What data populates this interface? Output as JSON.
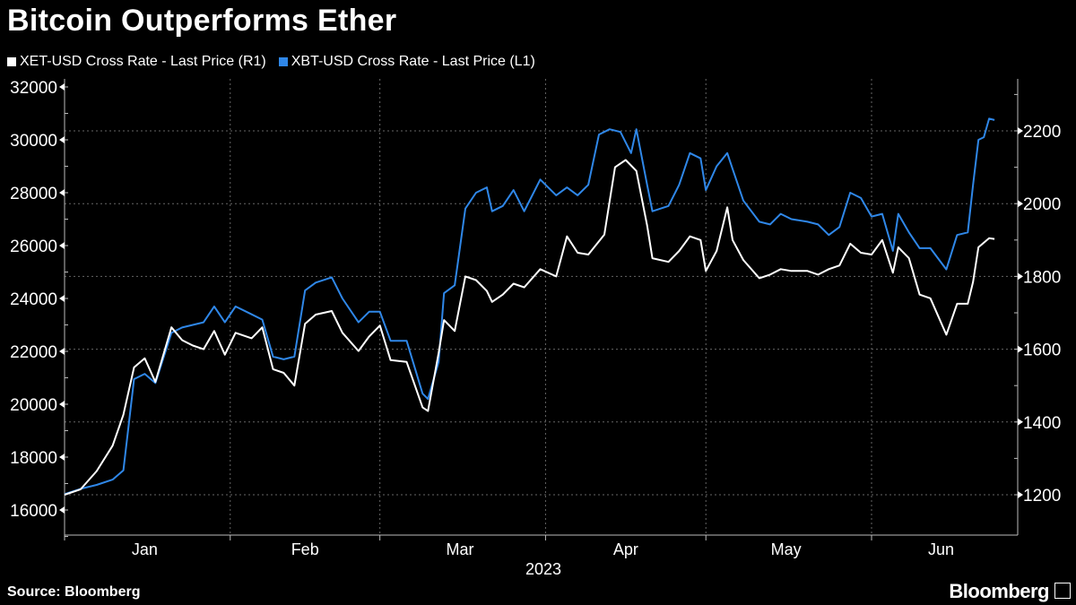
{
  "chart_data": {
    "type": "line",
    "title": "Bitcoin Outperforms Ether",
    "xlabel": "2023",
    "x_tick_labels": [
      "Jan",
      "Feb",
      "Mar",
      "Apr",
      "May",
      "Jun"
    ],
    "left_axis": {
      "ylim": [
        15000,
        32500
      ],
      "ticks": [
        16000,
        18000,
        20000,
        22000,
        24000,
        26000,
        28000,
        30000,
        32000
      ]
    },
    "right_axis": {
      "ylim": [
        1110,
        2300
      ],
      "ticks": [
        1200,
        1400,
        1600,
        1800,
        2000,
        2200
      ]
    },
    "grid": true,
    "legend_placement": "top-left",
    "series": [
      {
        "name": "XET-USD Cross Rate - Last Price (R1)",
        "axis": "right",
        "color": "#ffffff",
        "points": [
          [
            "2023-01-01",
            1200
          ],
          [
            "2023-01-04",
            1215
          ],
          [
            "2023-01-07",
            1265
          ],
          [
            "2023-01-10",
            1335
          ],
          [
            "2023-01-12",
            1420
          ],
          [
            "2023-01-14",
            1550
          ],
          [
            "2023-01-16",
            1575
          ],
          [
            "2023-01-18",
            1510
          ],
          [
            "2023-01-21",
            1660
          ],
          [
            "2023-01-23",
            1625
          ],
          [
            "2023-01-25",
            1610
          ],
          [
            "2023-01-27",
            1600
          ],
          [
            "2023-01-29",
            1650
          ],
          [
            "2023-01-31",
            1585
          ],
          [
            "2023-02-02",
            1645
          ],
          [
            "2023-02-05",
            1630
          ],
          [
            "2023-02-07",
            1660
          ],
          [
            "2023-02-09",
            1545
          ],
          [
            "2023-02-11",
            1535
          ],
          [
            "2023-02-13",
            1500
          ],
          [
            "2023-02-15",
            1670
          ],
          [
            "2023-02-17",
            1695
          ],
          [
            "2023-02-20",
            1705
          ],
          [
            "2023-02-22",
            1645
          ],
          [
            "2023-02-25",
            1595
          ],
          [
            "2023-02-27",
            1635
          ],
          [
            "2023-03-01",
            1665
          ],
          [
            "2023-03-03",
            1570
          ],
          [
            "2023-03-06",
            1565
          ],
          [
            "2023-03-09",
            1440
          ],
          [
            "2023-03-10",
            1430
          ],
          [
            "2023-03-12",
            1590
          ],
          [
            "2023-03-13",
            1680
          ],
          [
            "2023-03-15",
            1650
          ],
          [
            "2023-03-17",
            1800
          ],
          [
            "2023-03-19",
            1790
          ],
          [
            "2023-03-21",
            1760
          ],
          [
            "2023-03-22",
            1730
          ],
          [
            "2023-03-24",
            1750
          ],
          [
            "2023-03-26",
            1780
          ],
          [
            "2023-03-28",
            1770
          ],
          [
            "2023-03-31",
            1820
          ],
          [
            "2023-04-03",
            1800
          ],
          [
            "2023-04-05",
            1910
          ],
          [
            "2023-04-07",
            1865
          ],
          [
            "2023-04-09",
            1860
          ],
          [
            "2023-04-12",
            1915
          ],
          [
            "2023-04-14",
            2100
          ],
          [
            "2023-04-16",
            2120
          ],
          [
            "2023-04-18",
            2090
          ],
          [
            "2023-04-20",
            1940
          ],
          [
            "2023-04-21",
            1850
          ],
          [
            "2023-04-24",
            1840
          ],
          [
            "2023-04-26",
            1870
          ],
          [
            "2023-04-28",
            1910
          ],
          [
            "2023-04-30",
            1900
          ],
          [
            "2023-05-01",
            1815
          ],
          [
            "2023-05-03",
            1870
          ],
          [
            "2023-05-05",
            1990
          ],
          [
            "2023-05-06",
            1900
          ],
          [
            "2023-05-08",
            1845
          ],
          [
            "2023-05-11",
            1795
          ],
          [
            "2023-05-13",
            1805
          ],
          [
            "2023-05-15",
            1820
          ],
          [
            "2023-05-17",
            1815
          ],
          [
            "2023-05-20",
            1815
          ],
          [
            "2023-05-22",
            1805
          ],
          [
            "2023-05-24",
            1820
          ],
          [
            "2023-05-26",
            1830
          ],
          [
            "2023-05-28",
            1890
          ],
          [
            "2023-05-30",
            1865
          ],
          [
            "2023-06-01",
            1860
          ],
          [
            "2023-06-03",
            1900
          ],
          [
            "2023-06-05",
            1810
          ],
          [
            "2023-06-06",
            1880
          ],
          [
            "2023-06-08",
            1850
          ],
          [
            "2023-06-10",
            1750
          ],
          [
            "2023-06-12",
            1740
          ],
          [
            "2023-06-15",
            1640
          ],
          [
            "2023-06-17",
            1725
          ],
          [
            "2023-06-19",
            1725
          ],
          [
            "2023-06-20",
            1785
          ],
          [
            "2023-06-21",
            1880
          ],
          [
            "2023-06-23",
            1905
          ],
          [
            "2023-06-24",
            1903
          ]
        ]
      },
      {
        "name": "XBT-USD Cross Rate - Last Price (L1)",
        "axis": "left",
        "color": "#2f87e8",
        "points": [
          [
            "2023-01-01",
            16600
          ],
          [
            "2023-01-04",
            16800
          ],
          [
            "2023-01-07",
            16950
          ],
          [
            "2023-01-10",
            17150
          ],
          [
            "2023-01-12",
            17500
          ],
          [
            "2023-01-14",
            20950
          ],
          [
            "2023-01-16",
            21150
          ],
          [
            "2023-01-18",
            20800
          ],
          [
            "2023-01-21",
            22700
          ],
          [
            "2023-01-23",
            22900
          ],
          [
            "2023-01-25",
            23000
          ],
          [
            "2023-01-27",
            23100
          ],
          [
            "2023-01-29",
            23700
          ],
          [
            "2023-01-31",
            23100
          ],
          [
            "2023-02-02",
            23700
          ],
          [
            "2023-02-05",
            23400
          ],
          [
            "2023-02-07",
            23200
          ],
          [
            "2023-02-09",
            21800
          ],
          [
            "2023-02-11",
            21700
          ],
          [
            "2023-02-13",
            21800
          ],
          [
            "2023-02-15",
            24300
          ],
          [
            "2023-02-17",
            24600
          ],
          [
            "2023-02-20",
            24800
          ],
          [
            "2023-02-22",
            24000
          ],
          [
            "2023-02-25",
            23100
          ],
          [
            "2023-02-27",
            23500
          ],
          [
            "2023-03-01",
            23500
          ],
          [
            "2023-03-03",
            22400
          ],
          [
            "2023-03-06",
            22400
          ],
          [
            "2023-03-09",
            20400
          ],
          [
            "2023-03-10",
            20200
          ],
          [
            "2023-03-12",
            21600
          ],
          [
            "2023-03-13",
            24200
          ],
          [
            "2023-03-15",
            24500
          ],
          [
            "2023-03-17",
            27400
          ],
          [
            "2023-03-19",
            28000
          ],
          [
            "2023-03-21",
            28200
          ],
          [
            "2023-03-22",
            27300
          ],
          [
            "2023-03-24",
            27500
          ],
          [
            "2023-03-26",
            28100
          ],
          [
            "2023-03-28",
            27300
          ],
          [
            "2023-03-31",
            28500
          ],
          [
            "2023-04-03",
            27900
          ],
          [
            "2023-04-05",
            28200
          ],
          [
            "2023-04-07",
            27900
          ],
          [
            "2023-04-09",
            28300
          ],
          [
            "2023-04-11",
            30200
          ],
          [
            "2023-04-13",
            30400
          ],
          [
            "2023-04-15",
            30300
          ],
          [
            "2023-04-17",
            29500
          ],
          [
            "2023-04-18",
            30400
          ],
          [
            "2023-04-20",
            28300
          ],
          [
            "2023-04-21",
            27300
          ],
          [
            "2023-04-24",
            27500
          ],
          [
            "2023-04-26",
            28300
          ],
          [
            "2023-04-28",
            29500
          ],
          [
            "2023-04-30",
            29300
          ],
          [
            "2023-05-01",
            28100
          ],
          [
            "2023-05-03",
            29000
          ],
          [
            "2023-05-05",
            29500
          ],
          [
            "2023-05-06",
            28900
          ],
          [
            "2023-05-08",
            27700
          ],
          [
            "2023-05-11",
            26900
          ],
          [
            "2023-05-13",
            26800
          ],
          [
            "2023-05-15",
            27200
          ],
          [
            "2023-05-17",
            27000
          ],
          [
            "2023-05-20",
            26900
          ],
          [
            "2023-05-22",
            26800
          ],
          [
            "2023-05-24",
            26400
          ],
          [
            "2023-05-26",
            26700
          ],
          [
            "2023-05-28",
            28000
          ],
          [
            "2023-05-30",
            27800
          ],
          [
            "2023-06-01",
            27100
          ],
          [
            "2023-06-03",
            27200
          ],
          [
            "2023-06-05",
            25800
          ],
          [
            "2023-06-06",
            27200
          ],
          [
            "2023-06-08",
            26500
          ],
          [
            "2023-06-10",
            25900
          ],
          [
            "2023-06-12",
            25900
          ],
          [
            "2023-06-15",
            25100
          ],
          [
            "2023-06-17",
            26400
          ],
          [
            "2023-06-19",
            26500
          ],
          [
            "2023-06-20",
            28300
          ],
          [
            "2023-06-21",
            30000
          ],
          [
            "2023-06-22",
            30100
          ],
          [
            "2023-06-23",
            30800
          ],
          [
            "2023-06-24",
            30750
          ]
        ]
      }
    ]
  },
  "footer": {
    "source": "Source: Bloomberg",
    "logo": "Bloomberg"
  }
}
